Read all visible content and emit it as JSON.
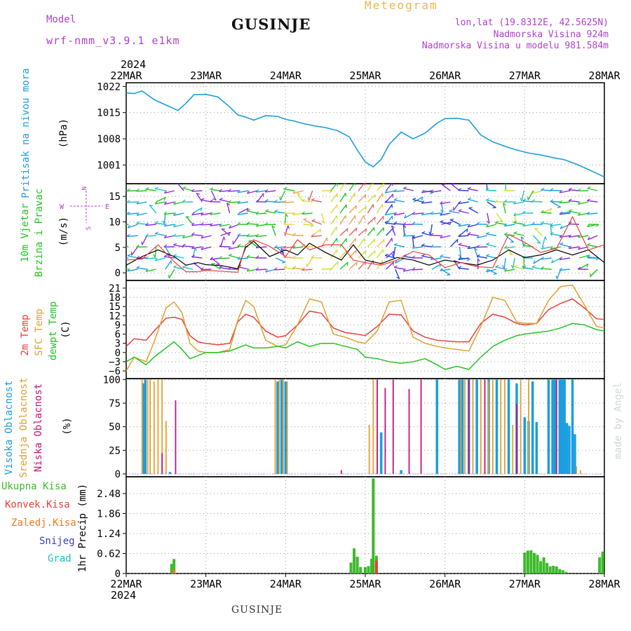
{
  "header": {
    "model_label": "Model",
    "model_name": "wrf-nmm_v3.9.1 e1km",
    "station": "GUSINJE",
    "meteogram": "Meteogram",
    "lonlat": "lon,lat (19.8312E, 42.5625N)",
    "elevation": "Nadmorska Visina 924m",
    "model_elevation": "Nadmorska Visina u modelu 981.584m",
    "footer_station": "GUSINJE",
    "watermark": "made by Angel"
  },
  "x_axis": {
    "year": "2024",
    "dates": [
      "22MAR",
      "23MAR",
      "24MAR",
      "25MAR",
      "26MAR",
      "27MAR",
      "28MAR"
    ]
  },
  "colors": {
    "pressure": "#1a9ee0",
    "temp2m": "#e8403a",
    "sfc_temp": "#e0a030",
    "dewpt": "#22c422",
    "high_cloud": "#1a9ee0",
    "mid_cloud": "#e0a030",
    "low_cloud": "#c8127a",
    "total_precip": "#3cba2a",
    "conv_precip": "#e8403a",
    "frozen": "#ee7a20",
    "snow": "#3a3ad8",
    "graupel": "#20c0c0",
    "grid": "#999999"
  },
  "chart_data": [
    {
      "type": "line",
      "title": "Pritisak na nivou mora",
      "ylabel": "(hPa)",
      "yticks": [
        1001,
        1008,
        1015,
        1022
      ],
      "ylim": [
        996,
        1023
      ],
      "x": [
        0,
        0.1,
        0.2,
        0.35,
        0.5,
        0.65,
        0.75,
        0.85,
        1.0,
        1.15,
        1.3,
        1.4,
        1.5,
        1.6,
        1.75,
        1.9,
        2.0,
        2.1,
        2.2,
        2.35,
        2.5,
        2.65,
        2.8,
        2.9,
        3.0,
        3.1,
        3.2,
        3.3,
        3.45,
        3.6,
        3.75,
        3.9,
        4.0,
        4.15,
        4.3,
        4.45,
        4.6,
        4.75,
        4.9,
        5.05,
        5.2,
        5.35,
        5.5,
        5.65,
        5.8,
        5.9,
        6.0
      ],
      "series": [
        {
          "values": [
            1020.3,
            1020.1,
            1020.8,
            1018.5,
            1017,
            1015.6,
            1017.5,
            1019.8,
            1019.9,
            1019.2,
            1016.5,
            1014.4,
            1013.8,
            1013,
            1014.2,
            1014,
            1013.2,
            1012.8,
            1012.2,
            1011.5,
            1011,
            1010.2,
            1008.5,
            1005,
            1001.8,
            1000.5,
            1002.5,
            1006.5,
            1009.8,
            1008,
            1009.5,
            1012.2,
            1013.4,
            1013.5,
            1013,
            1009,
            1007.2,
            1006,
            1005,
            1004.2,
            1003.7,
            1003,
            1002.4,
            1001.2,
            999.8,
            998.8,
            997.8
          ]
        }
      ]
    },
    {
      "type": "line",
      "title": "10m Vjetar Brzina i Pravac",
      "ylabel": "(m/s)",
      "yticks": [
        0,
        5,
        10,
        15
      ],
      "ylim": [
        -1.5,
        17.5
      ],
      "compass": {
        "north": "N",
        "south": "S",
        "east": "E",
        "west": "W"
      },
      "x": [
        0,
        0.2,
        0.4,
        0.6,
        0.75,
        0.9,
        1.0,
        1.2,
        1.4,
        1.5,
        1.6,
        1.8,
        2.0,
        2.15,
        2.3,
        2.5,
        2.7,
        2.85,
        3.0,
        3.2,
        3.4,
        3.6,
        3.8,
        4.0,
        4.2,
        4.4,
        4.6,
        4.8,
        5.0,
        5.2,
        5.4,
        5.6,
        5.8,
        6.0
      ],
      "series": [
        {
          "values": [
            1.5,
            3.2,
            4.5,
            3.2,
            1.5,
            2,
            1.6,
            1.4,
            0.8,
            5,
            6.2,
            3.2,
            4.5,
            3.5,
            5.8,
            4,
            2.5,
            5.5,
            2.5,
            1.8,
            3,
            2.5,
            1.5,
            2.5,
            2,
            1.5,
            2.5,
            4.5,
            3,
            3.5,
            4.5,
            3.5,
            4.5,
            2
          ]
        },
        {
          "values": [
            2.5,
            2.7,
            5.5,
            2.2,
            0.2,
            0.2,
            0.5,
            0.3,
            0.1,
            5.5,
            6.5,
            5.2,
            3.2,
            6.5,
            4.5,
            5.5,
            5.5,
            2.5,
            2,
            1.5,
            2.5,
            4.2,
            3.5,
            1,
            2,
            1.2,
            1,
            7.5,
            6,
            4,
            4.8,
            11,
            4.5,
            5.5
          ]
        }
      ]
    },
    {
      "type": "line",
      "title": "2m Temp / SFC Temp / dewpt Temp",
      "ylabel": "(C)",
      "yticks": [
        -6,
        -3,
        0,
        3,
        6,
        9,
        12,
        15,
        18,
        21
      ],
      "ylim": [
        -8.5,
        23.5
      ],
      "x": [
        0,
        0.1,
        0.25,
        0.35,
        0.5,
        0.6,
        0.7,
        0.8,
        0.9,
        1.0,
        1.15,
        1.3,
        1.4,
        1.5,
        1.6,
        1.75,
        1.9,
        2.0,
        2.15,
        2.3,
        2.45,
        2.6,
        2.75,
        2.9,
        3.0,
        3.15,
        3.3,
        3.45,
        3.6,
        3.75,
        3.9,
        4.0,
        4.15,
        4.3,
        4.45,
        4.6,
        4.75,
        4.9,
        5.0,
        5.15,
        5.3,
        5.45,
        5.6,
        5.75,
        5.9,
        6.0
      ],
      "series": [
        {
          "name": "2m Temp",
          "values": [
            2,
            4.5,
            4,
            7,
            11.2,
            11.5,
            10.8,
            5.5,
            3.5,
            3,
            2.5,
            3,
            10,
            12.5,
            11.5,
            7,
            5,
            5.5,
            9,
            13.5,
            12.8,
            8,
            6.5,
            6,
            5.5,
            8.5,
            12.5,
            12.3,
            7,
            5,
            4,
            3.8,
            3.5,
            3.5,
            9.5,
            12.5,
            11.5,
            9.5,
            9,
            9.5,
            14,
            16,
            17.5,
            14.5,
            11,
            10.8
          ]
        },
        {
          "name": "SFC Temp",
          "values": [
            -6,
            -1.5,
            -3,
            3.5,
            14.5,
            16.5,
            13,
            3,
            0.5,
            0,
            0,
            1,
            10.5,
            17,
            15,
            4,
            2,
            2.5,
            9,
            17.5,
            16.5,
            6,
            5,
            3.5,
            3,
            7,
            16.5,
            17,
            5,
            3,
            2,
            1.5,
            1,
            0.5,
            8.5,
            18,
            17,
            10,
            9.5,
            9.5,
            17,
            21.5,
            22,
            15.5,
            8.5,
            8
          ]
        },
        {
          "name": "dewpt Temp",
          "values": [
            -3,
            -1.5,
            -4,
            -1.5,
            1.5,
            3.5,
            1,
            -2,
            -1,
            0,
            0,
            0.5,
            1.5,
            2.5,
            1.5,
            1.5,
            2,
            1.5,
            3.5,
            2,
            3,
            3,
            2,
            1,
            -1.5,
            -2,
            -3,
            -3.5,
            -3,
            -2,
            -4,
            -5.5,
            -4.5,
            -5.5,
            -1.5,
            2,
            4,
            5.5,
            6,
            6.5,
            7,
            8,
            9.5,
            9,
            7.5,
            7
          ]
        }
      ]
    },
    {
      "type": "bar",
      "title": "Visoka Oblacnost / Srednja Oblacnost / Niska Oblacnost",
      "ylabel": "(%)",
      "yticks": [
        0,
        25,
        50,
        75,
        100
      ],
      "ylim": [
        -3,
        101
      ],
      "series": [
        {
          "name": "Visoka Oblacnost",
          "x": [
            0.22,
            0.24,
            0.55,
            1.9,
            1.95,
            2.0,
            3.2,
            3.45,
            3.9,
            4.18,
            4.22,
            4.3,
            4.4,
            4.55,
            4.65,
            4.8,
            4.9,
            5.0,
            5.05,
            5.1,
            5.15,
            5.3,
            5.35,
            5.38,
            5.44,
            5.47,
            5.5,
            5.53,
            5.56,
            5.6,
            5.63
          ],
          "values": [
            96,
            100,
            2,
            98,
            100,
            98,
            44,
            4,
            100,
            100,
            100,
            100,
            100,
            100,
            100,
            100,
            96,
            60,
            56,
            98,
            55,
            100,
            100,
            100,
            100,
            100,
            100,
            54,
            51,
            100,
            42
          ]
        },
        {
          "name": "Srednja Oblacnost",
          "x": [
            0.2,
            0.27,
            0.3,
            0.35,
            0.4,
            0.45,
            0.5,
            1.87,
            1.92,
            1.97,
            2.02,
            3.05,
            3.1,
            3.15,
            4.2,
            4.25,
            4.35,
            4.45,
            4.55,
            4.6,
            4.7,
            4.75,
            4.85,
            4.95,
            5.05,
            5.65,
            5.7
          ],
          "values": [
            100,
            100,
            100,
            98,
            100,
            100,
            56,
            100,
            100,
            100,
            98,
            52,
            100,
            100,
            100,
            100,
            100,
            100,
            98,
            100,
            100,
            100,
            52,
            100,
            100,
            8,
            4
          ]
        },
        {
          "name": "Niska Oblacnost",
          "x": [
            0.62,
            0.45,
            2.7,
            3.15,
            3.25,
            3.35,
            3.55,
            3.7,
            4.3,
            4.5,
            4.9,
            5.4
          ],
          "values": [
            78,
            22,
            4,
            100,
            91,
            100,
            90,
            100,
            100,
            100,
            74,
            100
          ]
        }
      ]
    },
    {
      "type": "bar",
      "title": "1hr Precip",
      "ylabel": "1hr Precip (mm)",
      "yticks": [
        0,
        0.62,
        1.24,
        1.86,
        2.48
      ],
      "ylim": [
        0,
        3.0
      ],
      "series": [
        {
          "name": "Ukupna Kisa",
          "x": [
            0.57,
            0.6,
            2.82,
            2.86,
            2.9,
            2.94,
            3.0,
            3.04,
            3.08,
            3.1,
            3.14,
            5.0,
            5.04,
            5.08,
            5.12,
            5.16,
            5.2,
            5.24,
            5.28,
            5.32,
            5.36,
            5.4,
            5.44,
            5.48,
            5.52,
            5.94,
            5.98
          ],
          "values": [
            0.3,
            0.45,
            0.34,
            0.78,
            0.52,
            0.2,
            0.2,
            0.23,
            0.46,
            2.95,
            0.55,
            0.65,
            0.71,
            0.72,
            0.64,
            0.58,
            0.38,
            0.5,
            0.33,
            0.22,
            0.24,
            0.22,
            0.14,
            0.1,
            0.05,
            0.5,
            0.68
          ]
        },
        {
          "name": "Konvek.Kisa",
          "x": [
            3.14
          ],
          "values": [
            0.4
          ]
        },
        {
          "name": "Zaledj.Kisa",
          "x": [
            0.6
          ],
          "values": [
            0.12
          ]
        },
        {
          "name": "Snijeg",
          "x": [],
          "values": []
        },
        {
          "name": "Grad",
          "x": [],
          "values": []
        }
      ]
    }
  ]
}
